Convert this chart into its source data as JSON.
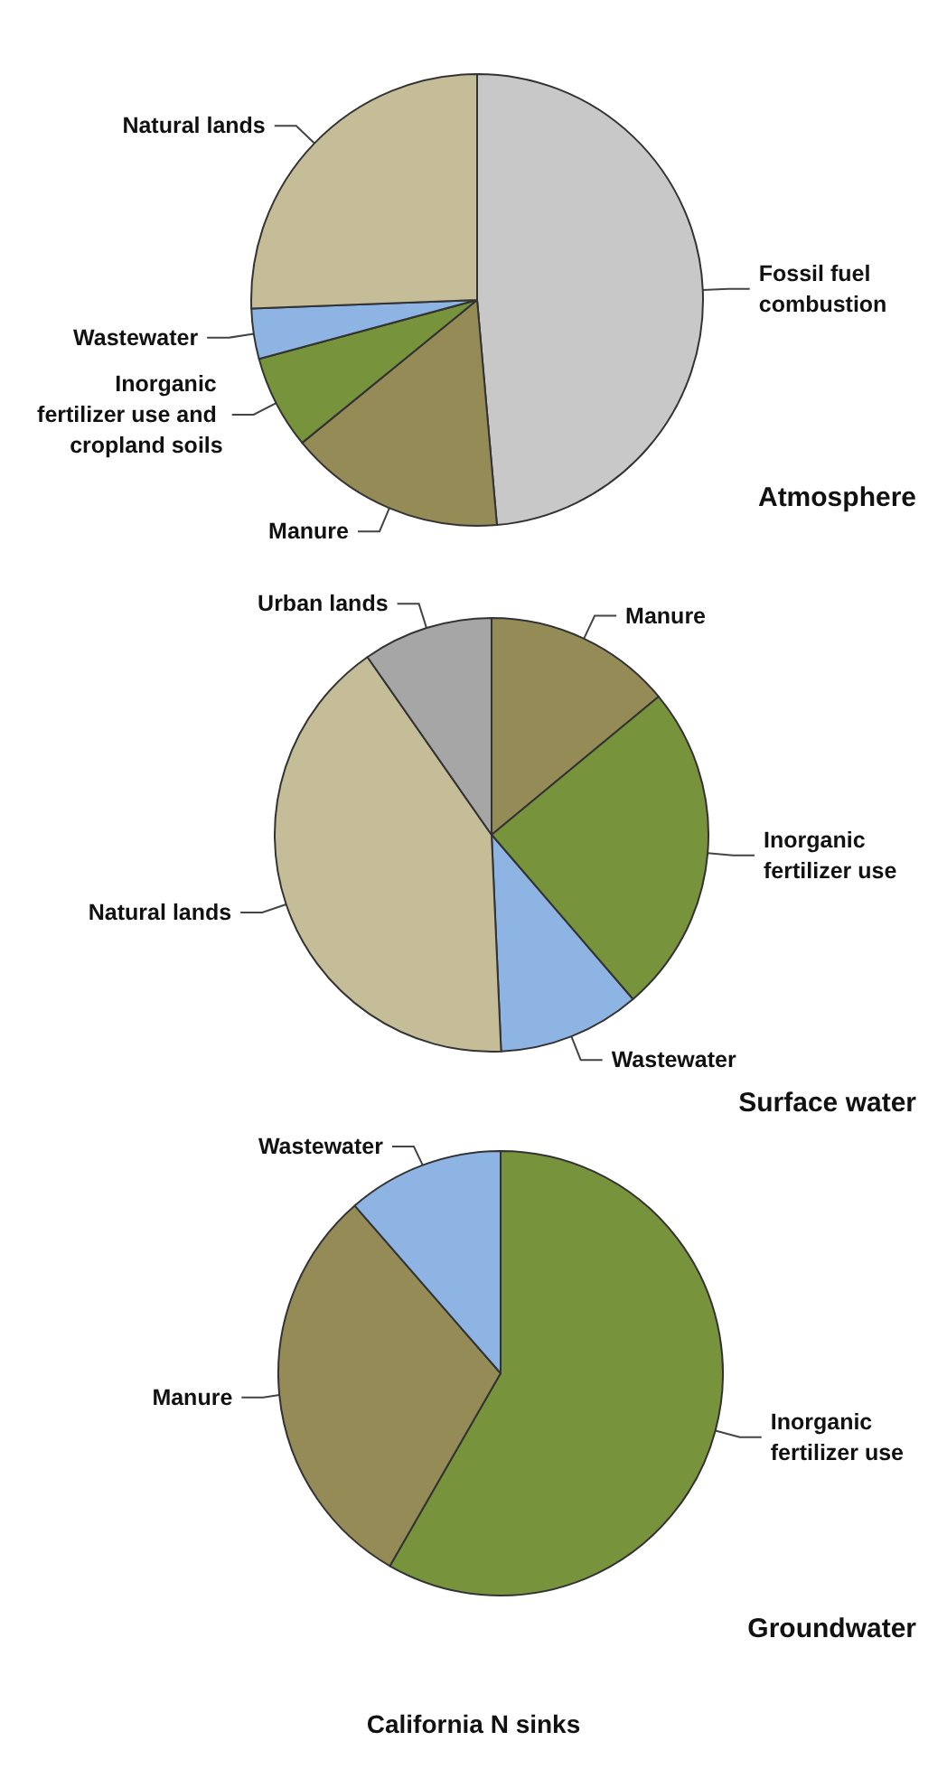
{
  "chart_data": [
    {
      "type": "pie",
      "title": "Atmosphere",
      "categories": [
        "Fossil fuel combustion",
        "Manure",
        "Inorganic fertilizer use and cropland soils",
        "Wastewater",
        "Natural lands"
      ],
      "values": [
        48.6,
        15.5,
        6.7,
        3.6,
        25.6
      ],
      "colors": [
        "#c8c8c8",
        "#958b57",
        "#77933c",
        "#8eb4e3",
        "#c4bd97"
      ],
      "legend": false
    },
    {
      "type": "pie",
      "title": "Surface water",
      "categories": [
        "Manure",
        "Inorganic fertilizer use",
        "Wastewater",
        "Natural lands",
        "Urban lands"
      ],
      "values": [
        14,
        24.7,
        10.6,
        41,
        9.7
      ],
      "colors": [
        "#958b57",
        "#77933c",
        "#8eb4e3",
        "#c4bd97",
        "#a6a6a6"
      ],
      "legend": false
    },
    {
      "type": "pie",
      "title": "Groundwater",
      "categories": [
        "Inorganic fertilizer use",
        "Manure",
        "Wastewater"
      ],
      "values": [
        58.3,
        30.3,
        11.4
      ],
      "colors": [
        "#77933c",
        "#958b57",
        "#8eb4e3"
      ],
      "legend": false,
      "annotations": [
        "California N sinks"
      ]
    }
  ]
}
